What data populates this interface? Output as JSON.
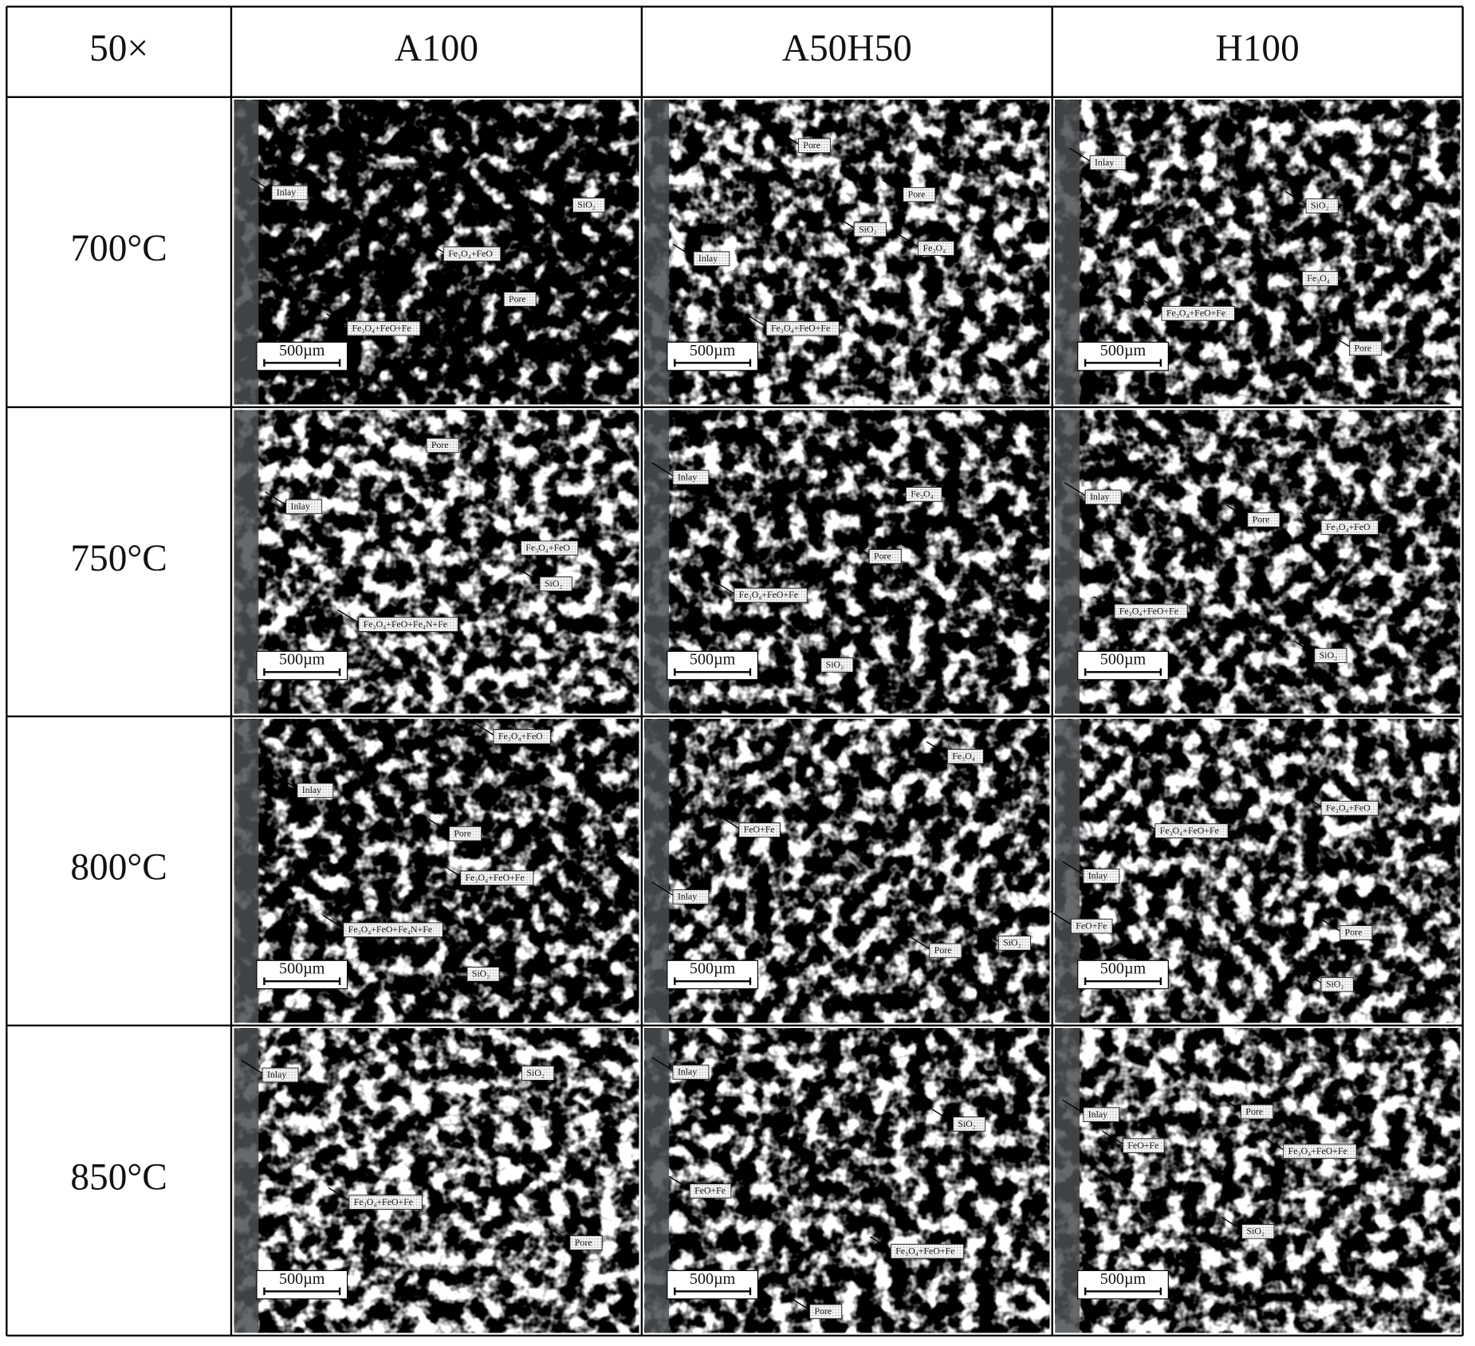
{
  "header": [
    "50×",
    "A100",
    "A50H50",
    "H100"
  ],
  "rows": [
    {
      "label": "700°C",
      "cells": [
        {
          "labels": [
            "Inlay",
            "SiO₂",
            "Fe₃O₄+FeO",
            "Pore",
            "Fe₃O₄+FeO+Fe"
          ],
          "scale_bar": "500µm"
        },
        {
          "labels": [
            "Pore",
            "Pore",
            "SiO₂",
            "Fe₃O₄",
            "Inlay",
            "Fe₃O₄+FeO+Fe"
          ],
          "scale_bar": "500µm"
        },
        {
          "labels": [
            "Inlay",
            "SiO₂",
            "Fe₃O₄",
            "Fe₃O₄+FeO+Fe",
            "Pore"
          ],
          "scale_bar": "500µm"
        }
      ]
    },
    {
      "label": "750°C",
      "cells": [
        {
          "labels": [
            "Pore",
            "Inlay",
            "Fe₃O₄+FeO",
            "SiO₂",
            "Fe₃O₄+FeO+Fe₄N+Fe"
          ],
          "scale_bar": "500µm"
        },
        {
          "labels": [
            "Inlay",
            "Fe₃O₄",
            "Pore",
            "Fe₃O₄+FeO+Fe",
            "SiO₂"
          ],
          "scale_bar": "500µm"
        },
        {
          "labels": [
            "Inlay",
            "Pore",
            "Fe₃O₄+FeO",
            "Fe₃O₄+FeO+Fe",
            "SiO₂"
          ],
          "scale_bar": "500µm"
        }
      ]
    },
    {
      "label": "800°C",
      "cells": [
        {
          "labels": [
            "Fe₃O₄+FeO",
            "Inlay",
            "Pore",
            "Fe₃O₄+FeO+Fe",
            "Fe₃O₄+FeO+Fe₄N+Fe",
            "SiO₂"
          ],
          "scale_bar": "500µm"
        },
        {
          "labels": [
            "Fe₃O₄",
            "FeO+Fe",
            "Inlay",
            "Pore",
            "SiO₂"
          ],
          "scale_bar": "500µm"
        },
        {
          "labels": [
            "Fe₃O₄+FeO",
            "Fe₃O₄+FeO+Fe",
            "Inlay",
            "FeO+Fe",
            "Pore",
            "SiO₂"
          ],
          "scale_bar": "500µm"
        }
      ]
    },
    {
      "label": "850°C",
      "cells": [
        {
          "labels": [
            "Inlay",
            "SiO₂",
            "Fe₃O₄+FeO+Fe",
            "Pore"
          ],
          "scale_bar": "500µm"
        },
        {
          "labels": [
            "Inlay",
            "SiO₂",
            "FeO+Fe",
            "Fe₃O₄+FeO+Fe",
            "Pore"
          ],
          "scale_bar": "500µm"
        },
        {
          "labels": [
            "Inlay",
            "Pore",
            "FeO+Fe",
            "Fe₃O₄+FeO+Fe",
            "SiO₂"
          ],
          "scale_bar": "500µm"
        }
      ]
    }
  ]
}
